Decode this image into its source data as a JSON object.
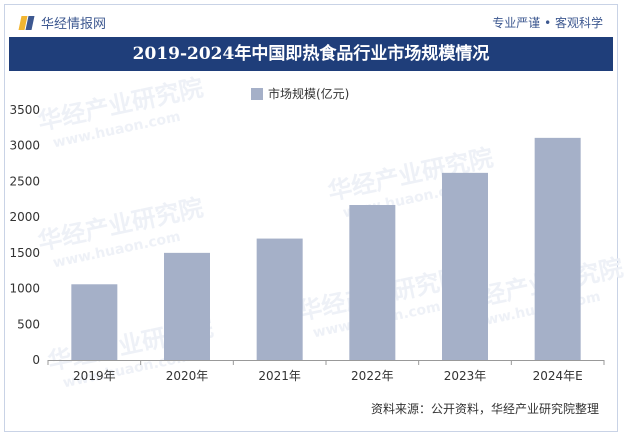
{
  "header": {
    "brand": "华经情报网",
    "slogan": "专业严谨 • 客观科学"
  },
  "colors": {
    "title_bg": "#1f3e7a",
    "bar": "#a5b0c8",
    "brand": "#3d5890"
  },
  "chart_data": {
    "type": "bar",
    "title": "2019-2024年中国即热食品行业市场规模情况",
    "categories": [
      "2019年",
      "2020年",
      "2021年",
      "2022年",
      "2023年",
      "2024年E"
    ],
    "series": [
      {
        "name": "市场规模(亿元)",
        "values": [
          1060,
          1500,
          1700,
          2170,
          2620,
          3110
        ]
      }
    ],
    "ylim": [
      0,
      3500
    ],
    "yticks": [
      0,
      500,
      1000,
      1500,
      2000,
      2500,
      3000,
      3500
    ],
    "grid": false,
    "legend": "top-center"
  },
  "footer": {
    "source": "资料来源：公开资料，华经产业研究院整理"
  },
  "watermark": {
    "text": "华经产业研究院",
    "sub": "www.huaon.com"
  }
}
